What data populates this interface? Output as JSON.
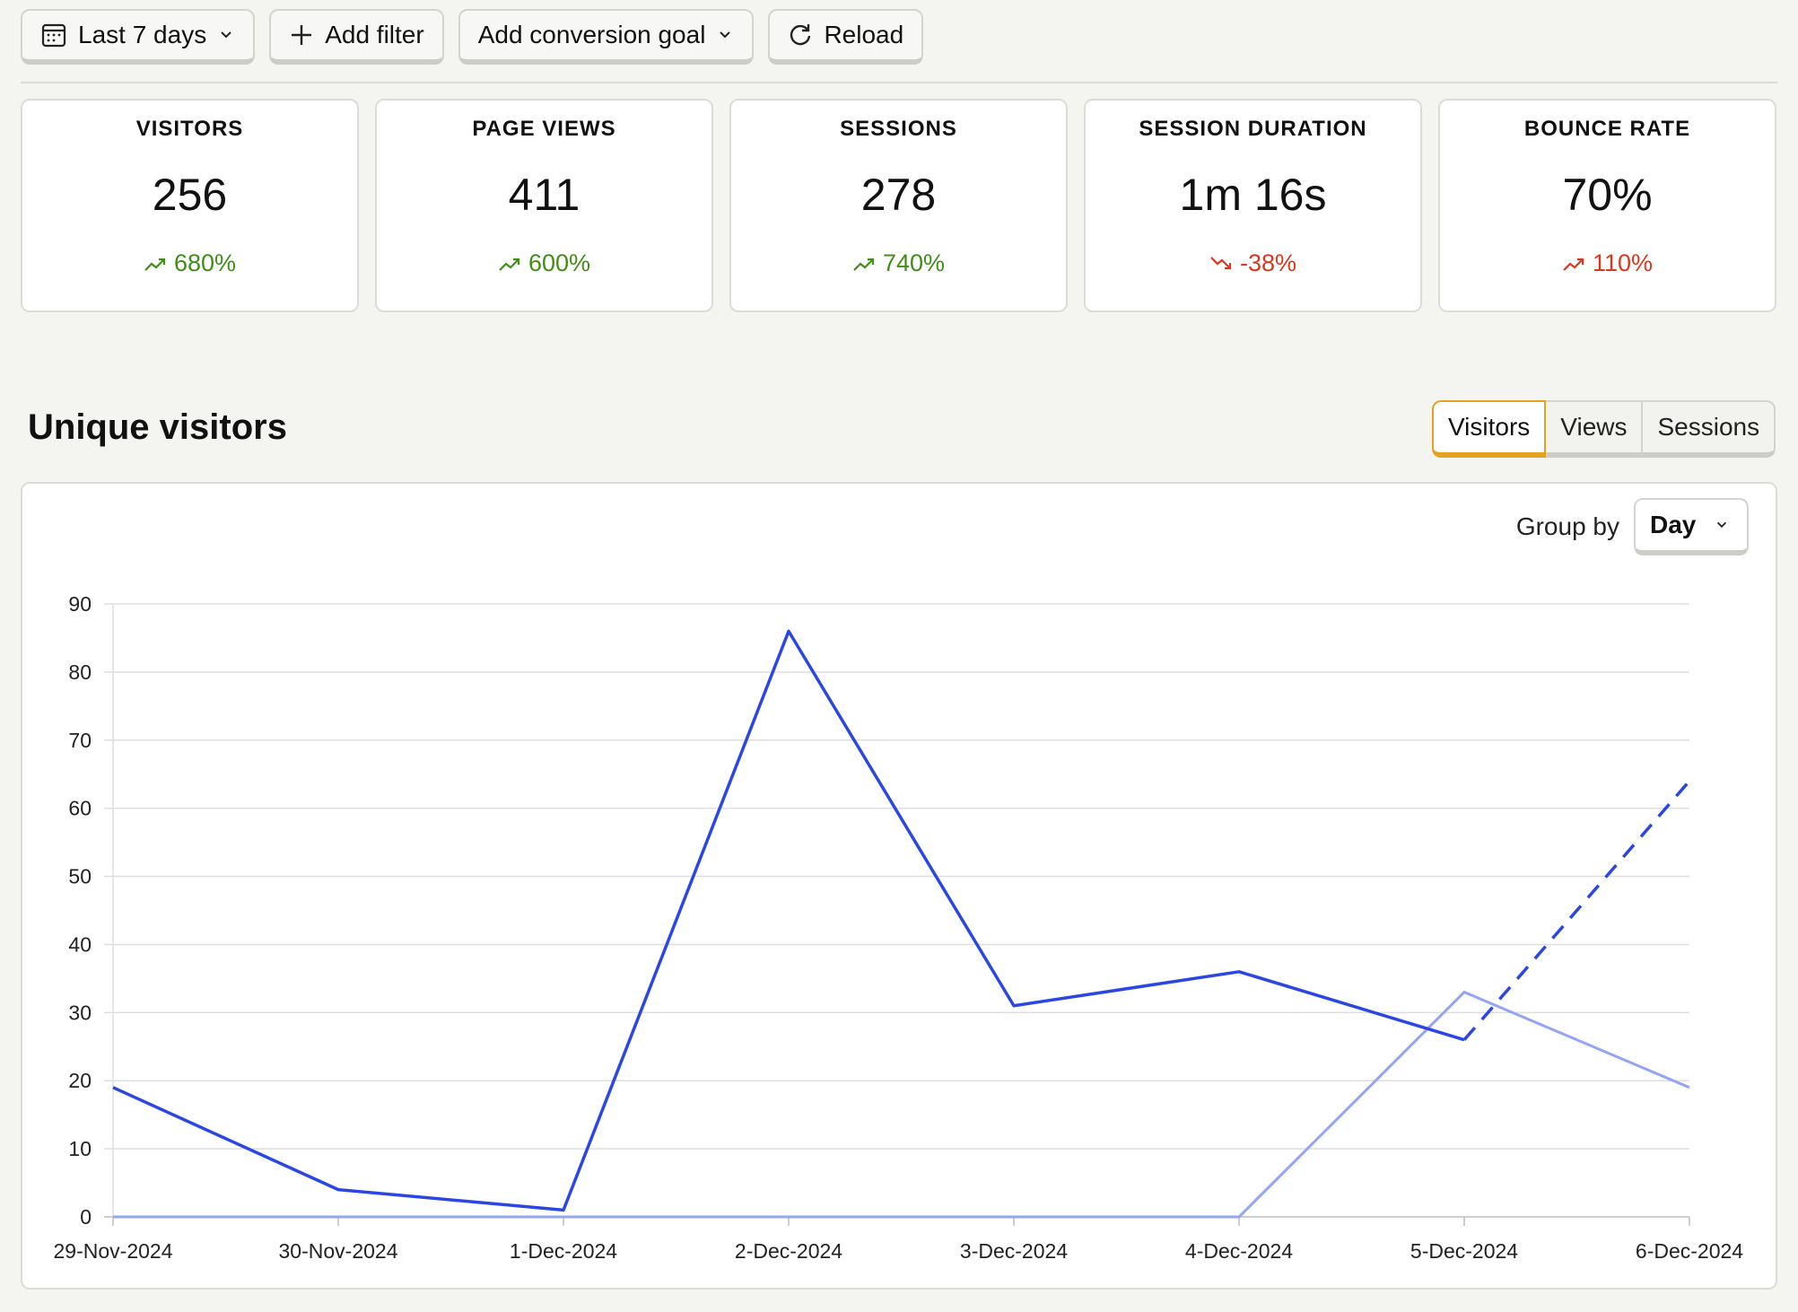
{
  "toolbar": {
    "date_range": "Last 7 days",
    "add_filter": "Add filter",
    "conversion_goal": "Add conversion goal",
    "reload": "Reload"
  },
  "stats": [
    {
      "label": "VISITORS",
      "value": "256",
      "change": "680%",
      "trend": "up"
    },
    {
      "label": "PAGE VIEWS",
      "value": "411",
      "change": "600%",
      "trend": "up"
    },
    {
      "label": "SESSIONS",
      "value": "278",
      "change": "740%",
      "trend": "up"
    },
    {
      "label": "SESSION DURATION",
      "value": "1m 16s",
      "change": "-38%",
      "trend": "down"
    },
    {
      "label": "BOUNCE RATE",
      "value": "70%",
      "change": "110%",
      "trend": "down"
    }
  ],
  "colors": {
    "up": "#3f8e18",
    "down": "#d9381e",
    "series_current": "#2a47e6",
    "series_previous": "#93a5f4",
    "tab_active": "#e4a21f"
  },
  "section": {
    "title": "Unique visitors"
  },
  "tabs": [
    {
      "label": "Visitors",
      "active": true
    },
    {
      "label": "Views",
      "active": false
    },
    {
      "label": "Sessions",
      "active": false
    }
  ],
  "group_by": {
    "label": "Group by",
    "value": "Day"
  },
  "chart_data": {
    "type": "line",
    "x": [
      "29-Nov-2024",
      "30-Nov-2024",
      "1-Dec-2024",
      "2-Dec-2024",
      "3-Dec-2024",
      "4-Dec-2024",
      "5-Dec-2024",
      "6-Dec-2024"
    ],
    "yticks": [
      "0",
      "10",
      "20",
      "30",
      "40",
      "50",
      "60",
      "70",
      "80",
      "90"
    ],
    "ylim": [
      0,
      90
    ],
    "grid": true,
    "series": [
      {
        "values": [
          19,
          4,
          1,
          86,
          31,
          36,
          26,
          64
        ],
        "dashed_from_index": 6
      },
      {
        "values": [
          0,
          0,
          0,
          0,
          0,
          0,
          33,
          19
        ]
      }
    ]
  }
}
